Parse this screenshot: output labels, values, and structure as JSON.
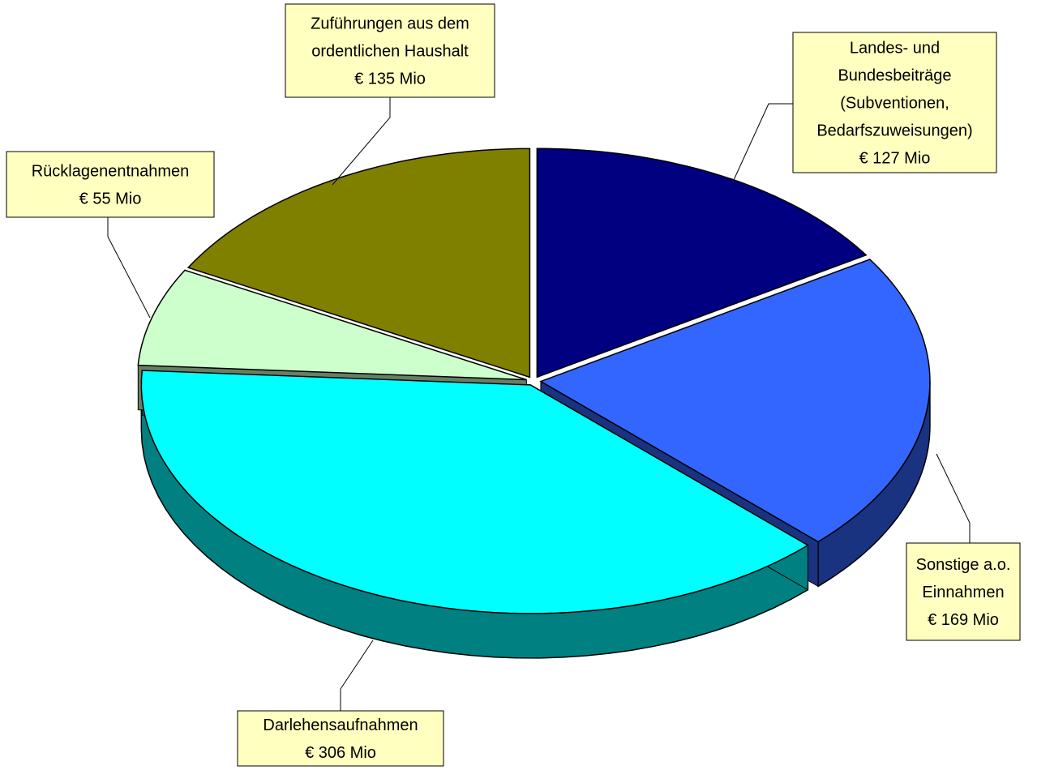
{
  "chart_data": {
    "type": "pie",
    "categories": [
      "Landes- und\nBundesbeiträge\n(Subventionen,\nBedarfszuweisungen)",
      "Sonstige a.o.\nEinnahmen",
      "Darlehensaufnahmen",
      "Rücklagenentnahmen",
      "Zuführungen aus dem\nordentlichen Haushalt"
    ],
    "values": [
      127,
      169,
      306,
      55,
      135
    ],
    "value_labels": [
      "€ 127 Mio",
      "€ 169 Mio",
      "€ 306 Mio",
      "€ 55 Mio",
      "€ 135 Mio"
    ],
    "colors": [
      "#000080",
      "#3366FF",
      "#00FFFF",
      "#CCFFCC",
      "#808000"
    ]
  }
}
